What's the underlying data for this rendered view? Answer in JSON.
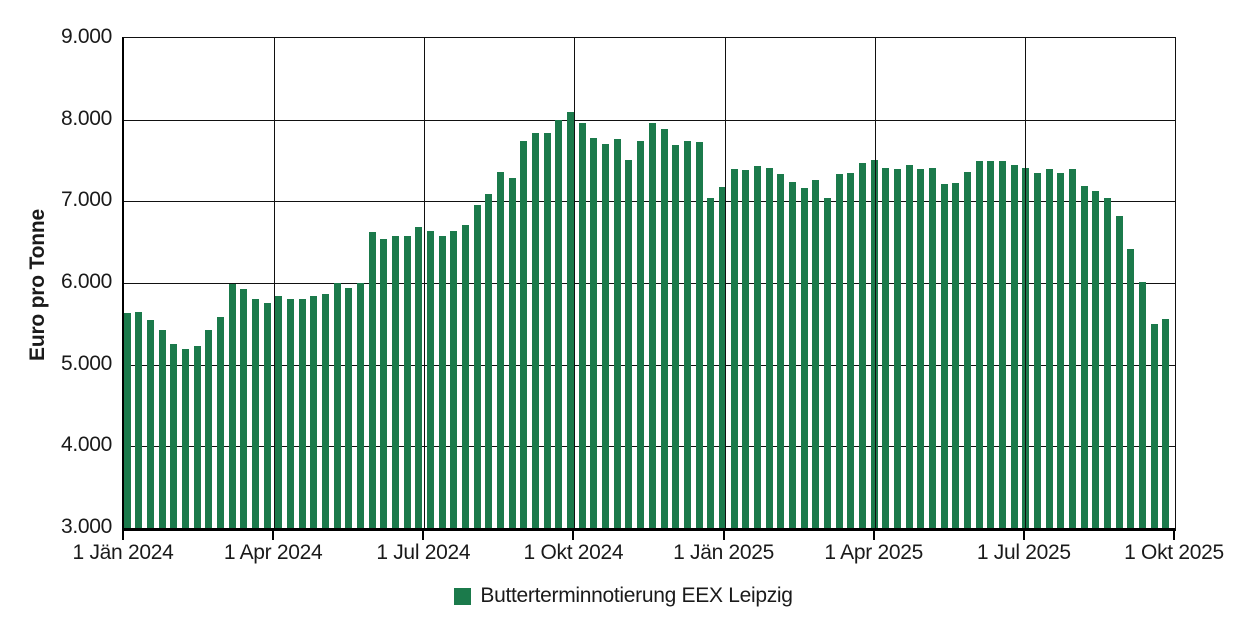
{
  "chart_data": {
    "type": "bar",
    "title": "",
    "xlabel": "",
    "ylabel": "Euro pro Tonne",
    "ylim": [
      3000,
      9000
    ],
    "ytick_step": 1000,
    "ytick_labels": [
      "3.000",
      "4.000",
      "5.000",
      "6.000",
      "7.000",
      "8.000",
      "9.000"
    ],
    "xtick_labels": [
      "1 Jän 2024",
      "1 Apr 2024",
      "1 Jul 2024",
      "1 Okt 2024",
      "1 Jän 2025",
      "1 Apr 2025",
      "1 Jul 2025",
      "1 Okt 2025"
    ],
    "x_unit": "week",
    "x_start": "1 Jän 2024",
    "x_end": "1 Okt 2025",
    "grid": true,
    "legend_position": "bottom",
    "bar_color": "#1b7a4b",
    "axis_color": "#111111",
    "text_color": "#1a1a1a",
    "series": [
      {
        "name": "Butterterminnotierung EEX Leipzig",
        "values": [
          5630,
          5640,
          5550,
          5420,
          5250,
          5190,
          5230,
          5430,
          5580,
          5990,
          5930,
          5810,
          5750,
          5840,
          5800,
          5810,
          5840,
          5870,
          6000,
          5940,
          6000,
          6620,
          6540,
          6580,
          6580,
          6690,
          6640,
          6580,
          6640,
          6710,
          6960,
          7090,
          7360,
          7280,
          7740,
          7840,
          7840,
          7990,
          8090,
          7960,
          7780,
          7700,
          7760,
          7510,
          7740,
          7960,
          7890,
          7690,
          7740,
          7730,
          7040,
          7180,
          7390,
          7380,
          7430,
          7410,
          7340,
          7240,
          7160,
          7260,
          7040,
          7330,
          7350,
          7470,
          7510,
          7410,
          7390,
          7450,
          7390,
          7410,
          7210,
          7220,
          7360,
          7490,
          7490,
          7490,
          7450,
          7410,
          7350,
          7390,
          7350,
          7390,
          7190,
          7130,
          7040,
          6820,
          6420,
          6010,
          5500,
          5560
        ]
      }
    ]
  },
  "legend": {
    "label": "Butterterminnotierung EEX Leipzig"
  },
  "axes": {
    "y_title": "Euro pro Tonne"
  }
}
